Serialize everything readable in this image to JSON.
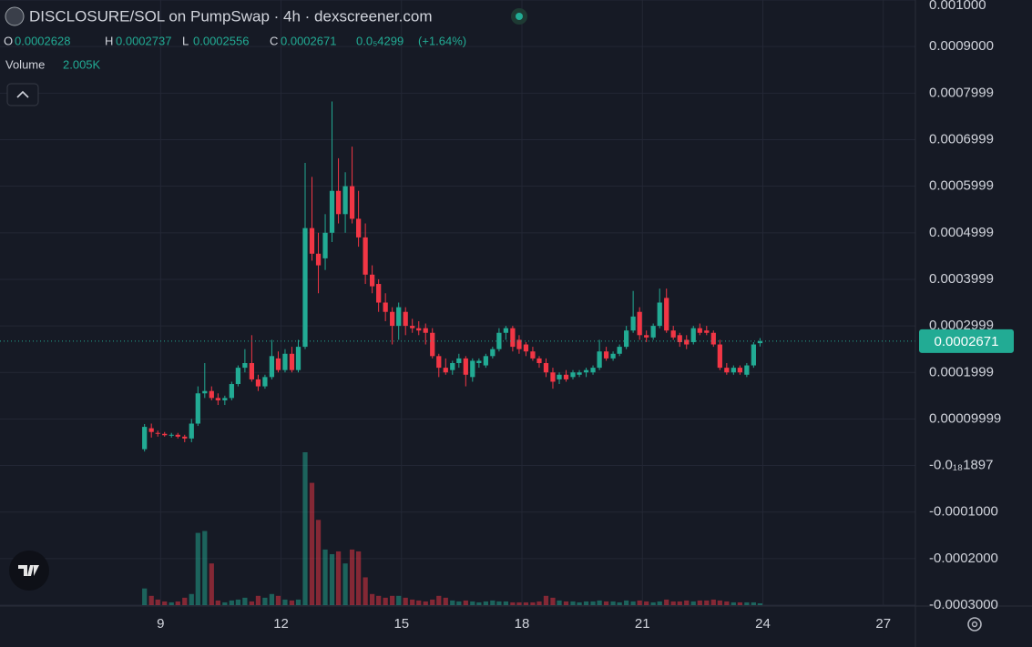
{
  "chart_data": {
    "type": "candlestick",
    "title": "DISCLOSURE/SOL on PumpSwap · 4h · dexscreener.com",
    "header": {
      "open_label": "O",
      "high_label": "H",
      "low_label": "L",
      "close_label": "C",
      "change": "0.0₅4299",
      "change_percent": "(+1.64%)",
      "volume_label": "Volume",
      "volume_value_label": "2.005K"
    },
    "up_color": "#22ab94",
    "down_color": "#f23645",
    "grid": true,
    "xlim": [
      5,
      27.8
    ],
    "xticks": [
      9,
      12,
      15,
      18,
      21,
      24,
      27
    ],
    "ylim": [
      -0.0003,
      0.001
    ],
    "yticks": [
      {
        "value": 0.001,
        "label": "0.001000"
      },
      {
        "value": 0.0009,
        "label": "0.0009000"
      },
      0.0007999,
      0.0006999,
      0.0005999,
      0.0004999,
      0.0003999,
      0.0002999,
      0.0001999,
      9.999e-05,
      {
        "value": -1.897e-19,
        "label": "-0.0₁₈1897"
      },
      {
        "value": -0.0001,
        "label": "-0.0001000"
      },
      {
        "value": -0.0002,
        "label": "-0.0002000"
      },
      {
        "value": -0.0003,
        "label": "-0.0003000"
      }
    ],
    "x": [
      8.6,
      8.77,
      8.93,
      9.1,
      9.27,
      9.43,
      9.6,
      9.77,
      9.93,
      10.1,
      10.27,
      10.43,
      10.6,
      10.77,
      10.93,
      11.1,
      11.27,
      11.43,
      11.6,
      11.77,
      11.93,
      12.1,
      12.27,
      12.43,
      12.6,
      12.77,
      12.93,
      13.1,
      13.27,
      13.43,
      13.6,
      13.77,
      13.93,
      14.1,
      14.27,
      14.43,
      14.6,
      14.77,
      14.93,
      15.1,
      15.27,
      15.43,
      15.6,
      15.77,
      15.93,
      16.1,
      16.27,
      16.43,
      16.6,
      16.77,
      16.93,
      17.1,
      17.27,
      17.43,
      17.6,
      17.77,
      17.93,
      18.1,
      18.27,
      18.43,
      18.6,
      18.77,
      18.93,
      19.1,
      19.27,
      19.43,
      19.6,
      19.77,
      19.93,
      20.1,
      20.27,
      20.43,
      20.6,
      20.77,
      20.93,
      21.1,
      21.27,
      21.43,
      21.6,
      21.77,
      21.93,
      22.1,
      22.27,
      22.43,
      22.6,
      22.77,
      22.93,
      23.1,
      23.27,
      23.43,
      23.6,
      23.77,
      23.93
    ],
    "candles": [
      [
        3.5e-05,
        8.9e-05,
        3e-05,
        8.3e-05
      ],
      [
        8e-05,
        9e-05,
        6e-05,
        7.2e-05
      ],
      [
        7e-05,
        7.5e-05,
        6.2e-05,
        6.8e-05
      ],
      [
        6.8e-05,
        7.2e-05,
        6.2e-05,
        6.5e-05
      ],
      [
        6.5e-05,
        7e-05,
        6e-05,
        6.6e-05
      ],
      [
        6.6e-05,
        7e-05,
        5.8e-05,
        6.2e-05
      ],
      [
        6.2e-05,
        6.6e-05,
        5e-05,
        5.8e-05
      ],
      [
        5.8e-05,
        0.0001,
        5e-05,
        9e-05
      ],
      [
        9e-05,
        0.00017,
        8.5e-05,
        0.000155
      ],
      [
        0.000155,
        0.00022,
        0.000145,
        0.00016
      ],
      [
        0.00016,
        0.00017,
        0.00014,
        0.000145
      ],
      [
        0.000145,
        0.000155,
        0.00013,
        0.00014
      ],
      [
        0.00014,
        0.00015,
        0.00013,
        0.000145
      ],
      [
        0.000145,
        0.00018,
        0.00014,
        0.000175
      ],
      [
        0.000175,
        0.000215,
        0.00017,
        0.00021
      ],
      [
        0.00021,
        0.00025,
        0.0002,
        0.00022
      ],
      [
        0.00022,
        0.00028,
        0.00018,
        0.000185
      ],
      [
        0.000185,
        0.000195,
        0.00016,
        0.00017
      ],
      [
        0.00017,
        0.000195,
        0.000165,
        0.00019
      ],
      [
        0.00019,
        0.00027,
        0.000185,
        0.000235
      ],
      [
        0.00023,
        0.000245,
        0.0002,
        0.000205
      ],
      [
        0.000205,
        0.00025,
        0.0002,
        0.00024
      ],
      [
        0.00024,
        0.000255,
        0.0002,
        0.000205
      ],
      [
        0.000205,
        0.00027,
        0.0002,
        0.000255
      ],
      [
        0.000255,
        0.00065,
        0.00025,
        0.00051
      ],
      [
        0.00051,
        0.00062,
        0.00044,
        0.000455
      ],
      [
        0.000455,
        0.0005,
        0.00037,
        0.00043
      ],
      [
        0.000445,
        0.00054,
        0.00042,
        0.0005
      ],
      [
        0.0005,
        0.000782,
        0.00048,
        0.00059
      ],
      [
        0.00059,
        0.00066,
        0.00052,
        0.00054
      ],
      [
        0.00054,
        0.00063,
        0.0005,
        0.0006
      ],
      [
        0.0006,
        0.000685,
        0.00052,
        0.00053
      ],
      [
        0.00053,
        0.00059,
        0.00047,
        0.00049
      ],
      [
        0.00049,
        0.00052,
        0.00039,
        0.00041
      ],
      [
        0.00041,
        0.00043,
        0.00037,
        0.000385
      ],
      [
        0.00039,
        0.0004,
        0.00033,
        0.00035
      ],
      [
        0.00035,
        0.00037,
        0.00031,
        0.00033
      ],
      [
        0.00033,
        0.00034,
        0.00026,
        0.0003
      ],
      [
        0.0003,
        0.00035,
        0.00027,
        0.00034
      ],
      [
        0.00033,
        0.00034,
        0.00028,
        0.0003
      ],
      [
        0.0003,
        0.000315,
        0.000285,
        0.000295
      ],
      [
        0.000295,
        0.00031,
        0.00028,
        0.00029
      ],
      [
        0.000295,
        0.000305,
        0.00026,
        0.000285
      ],
      [
        0.000285,
        0.000295,
        0.00023,
        0.000235
      ],
      [
        0.000235,
        0.00024,
        0.00019,
        0.00021
      ],
      [
        0.00021,
        0.00023,
        0.000195,
        0.0002
      ],
      [
        0.000205,
        0.000225,
        0.000195,
        0.00022
      ],
      [
        0.00022,
        0.00024,
        0.00021,
        0.00023
      ],
      [
        0.00023,
        0.000235,
        0.00017,
        0.000195
      ],
      [
        0.00019,
        0.00023,
        0.00018,
        0.000225
      ],
      [
        0.00022,
        0.00023,
        0.00021,
        0.000225
      ],
      [
        0.000215,
        0.00024,
        0.00021,
        0.000235
      ],
      [
        0.000235,
        0.000255,
        0.00023,
        0.00025
      ],
      [
        0.00025,
        0.000295,
        0.000245,
        0.000285
      ],
      [
        0.000285,
        0.0003,
        0.00027,
        0.000295
      ],
      [
        0.000295,
        0.0003,
        0.000245,
        0.000255
      ],
      [
        0.00027,
        0.00028,
        0.00024,
        0.00025
      ],
      [
        0.00026,
        0.000265,
        0.000235,
        0.000245
      ],
      [
        0.000245,
        0.000255,
        0.000225,
        0.00023
      ],
      [
        0.00023,
        0.000235,
        0.00021,
        0.00022
      ],
      [
        0.00022,
        0.00023,
        0.00019,
        0.0002
      ],
      [
        0.0002,
        0.00021,
        0.000165,
        0.00018
      ],
      [
        0.000185,
        0.0002,
        0.000175,
        0.000195
      ],
      [
        0.000195,
        0.000205,
        0.00018,
        0.000185
      ],
      [
        0.00019,
        0.000205,
        0.000185,
        0.0002
      ],
      [
        0.000195,
        0.000205,
        0.00019,
        0.0002
      ],
      [
        0.0002,
        0.00021,
        0.00019,
        0.000205
      ],
      [
        0.0002,
        0.000215,
        0.000195,
        0.00021
      ],
      [
        0.00021,
        0.00027,
        0.000205,
        0.000245
      ],
      [
        0.000245,
        0.000255,
        0.000225,
        0.00023
      ],
      [
        0.00023,
        0.000245,
        0.000225,
        0.00024
      ],
      [
        0.00024,
        0.00026,
        0.000235,
        0.000255
      ],
      [
        0.000255,
        0.0003,
        0.00025,
        0.00029
      ],
      [
        0.00029,
        0.000375,
        0.000285,
        0.00032
      ],
      [
        0.00033,
        0.00034,
        0.00027,
        0.00028
      ],
      [
        0.00028,
        0.00029,
        0.000265,
        0.000275
      ],
      [
        0.000275,
        0.000305,
        0.00027,
        0.0003
      ],
      [
        0.0003,
        0.00038,
        0.000295,
        0.00035
      ],
      [
        0.00036,
        0.00038,
        0.000285,
        0.00029
      ],
      [
        0.00029,
        0.0003,
        0.00027,
        0.000275
      ],
      [
        0.00028,
        0.000285,
        0.000255,
        0.000265
      ],
      [
        0.00027,
        0.00028,
        0.00025,
        0.00026
      ],
      [
        0.000265,
        0.0003,
        0.00026,
        0.000295
      ],
      [
        0.000295,
        0.000305,
        0.00028,
        0.000285
      ],
      [
        0.00029,
        0.0003,
        0.00028,
        0.000285
      ],
      [
        0.000285,
        0.00029,
        0.000255,
        0.00026
      ],
      [
        0.00026,
        0.00027,
        0.000205,
        0.00021
      ],
      [
        0.00021,
        0.00022,
        0.000195,
        0.0002
      ],
      [
        0.0002,
        0.000215,
        0.000195,
        0.00021
      ],
      [
        0.00021,
        0.000215,
        0.000195,
        0.0002
      ],
      [
        0.000195,
        0.00022,
        0.00019,
        0.000215
      ],
      [
        0.000215,
        0.000265,
        0.00021,
        0.00026
      ],
      [
        0.0002628,
        0.0002737,
        0.0002556,
        0.0002671
      ]
    ],
    "volume": [
      18000,
      10000,
      6000,
      4000,
      3000,
      4000,
      8000,
      12000,
      78000,
      80000,
      45000,
      5000,
      3000,
      5000,
      6000,
      8000,
      4000,
      10000,
      8000,
      12000,
      10000,
      6000,
      5000,
      6000,
      165000,
      132000,
      92000,
      60000,
      55000,
      58000,
      45000,
      60000,
      58000,
      30000,
      12000,
      10000,
      8000,
      10000,
      10000,
      8000,
      6000,
      5000,
      4000,
      6000,
      10000,
      8000,
      5000,
      4000,
      5000,
      4000,
      3000,
      4000,
      5000,
      4000,
      4000,
      3000,
      3000,
      3000,
      3000,
      4000,
      10000,
      8000,
      5000,
      4000,
      4000,
      3000,
      4000,
      4000,
      5000,
      4000,
      4000,
      3000,
      5000,
      4000,
      5000,
      4000,
      3000,
      4000,
      6000,
      4000,
      4000,
      5000,
      4000,
      5000,
      5000,
      6000,
      5000,
      4000,
      3000,
      3000,
      3000,
      3000,
      2005
    ]
  }
}
